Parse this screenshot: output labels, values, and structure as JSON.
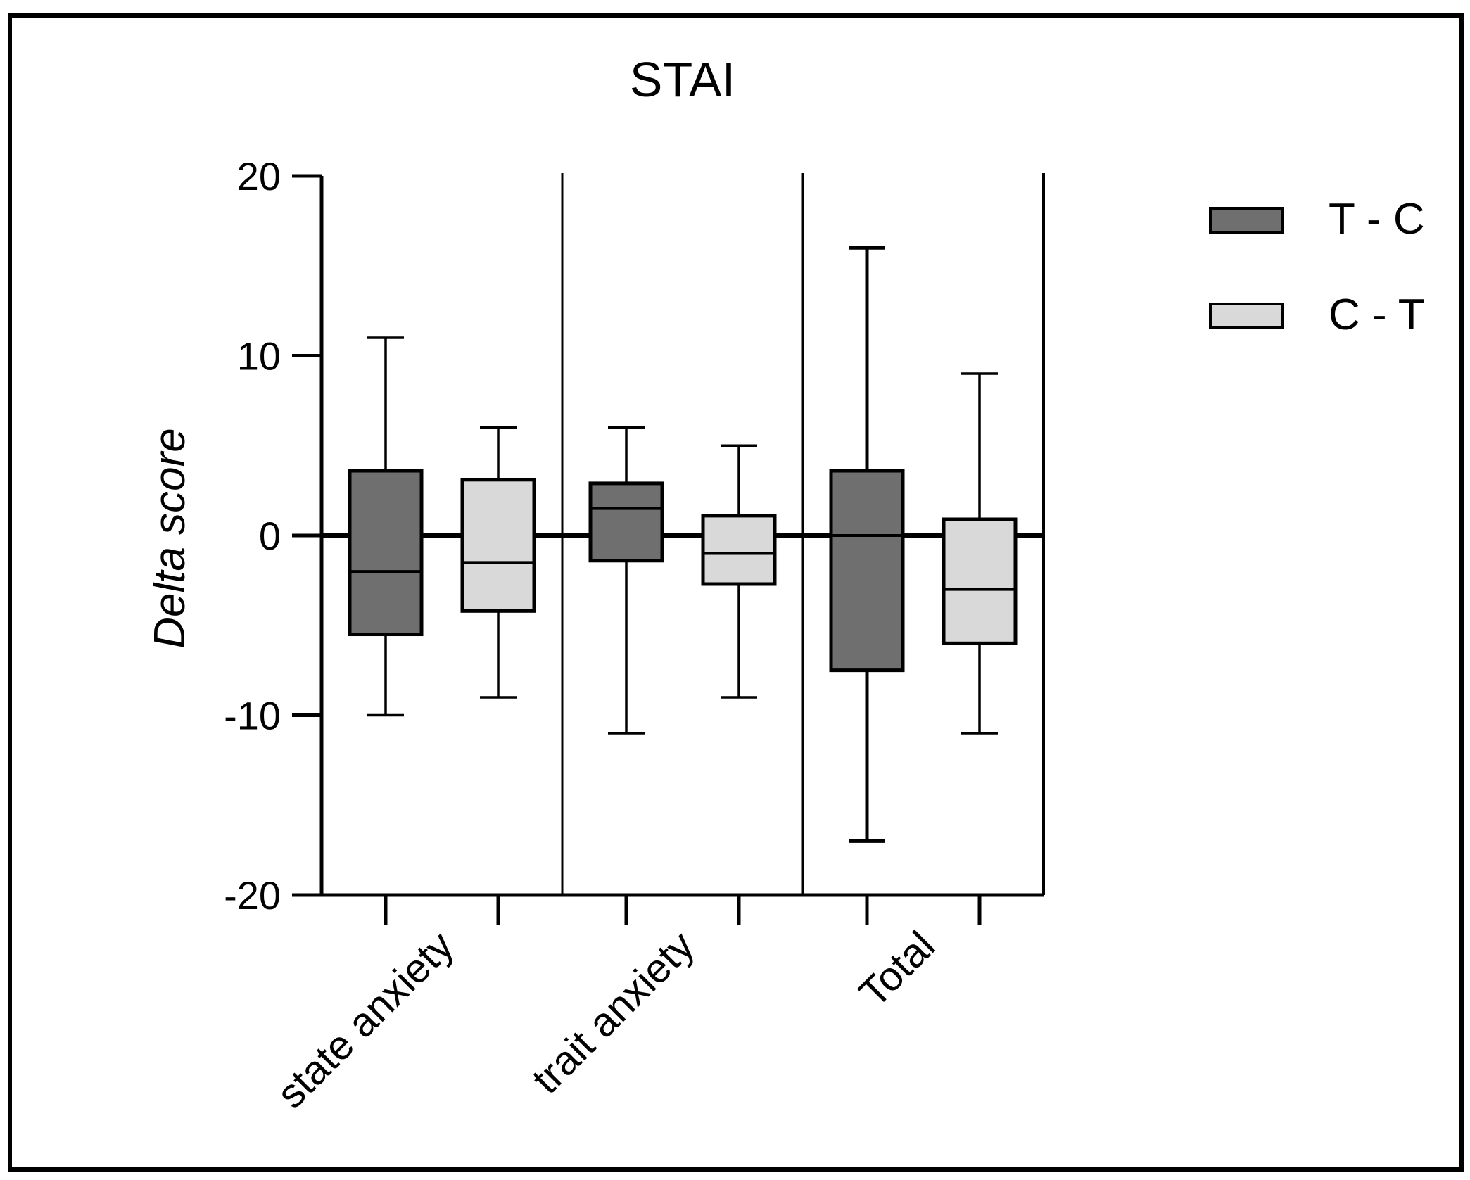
{
  "chart_data": {
    "type": "boxplot",
    "title": "STAI",
    "ylabel": "Delta score",
    "xlabel": "",
    "ylim": [
      -20,
      20
    ],
    "yticks": [
      20,
      10,
      0,
      -10,
      -20
    ],
    "yticklabels": [
      "20",
      "10",
      "0",
      "-10",
      "-20"
    ],
    "categories": [
      "state anxiety",
      "trait anxiety",
      "Total"
    ],
    "reference_line": 0,
    "legend": {
      "position": "right",
      "entries": [
        {
          "label": "T - C",
          "color": "#6f6f6f"
        },
        {
          "label": "C - T",
          "color": "#d9d9d9"
        }
      ]
    },
    "series": [
      {
        "name": "T - C",
        "color": "#6f6f6f",
        "boxes": [
          {
            "category": "state anxiety",
            "min": -10,
            "q1": -5.5,
            "median": -2,
            "q3": 3.6,
            "max": 11
          },
          {
            "category": "trait anxiety",
            "min": -11,
            "q1": -1.4,
            "median": 1.5,
            "q3": 2.9,
            "max": 6
          },
          {
            "category": "Total",
            "min": -17,
            "q1": -7.5,
            "median": 0,
            "q3": 3.6,
            "max": 16
          }
        ]
      },
      {
        "name": "C - T",
        "color": "#d9d9d9",
        "boxes": [
          {
            "category": "state anxiety",
            "min": -9,
            "q1": -4.2,
            "median": -1.5,
            "q3": 3.1,
            "max": 6
          },
          {
            "category": "trait anxiety",
            "min": -9,
            "q1": -2.7,
            "median": -1,
            "q3": 1.1,
            "max": 5
          },
          {
            "category": "Total",
            "min": -11,
            "q1": -6,
            "median": -3,
            "q3": 0.9,
            "max": 9
          }
        ]
      }
    ]
  }
}
